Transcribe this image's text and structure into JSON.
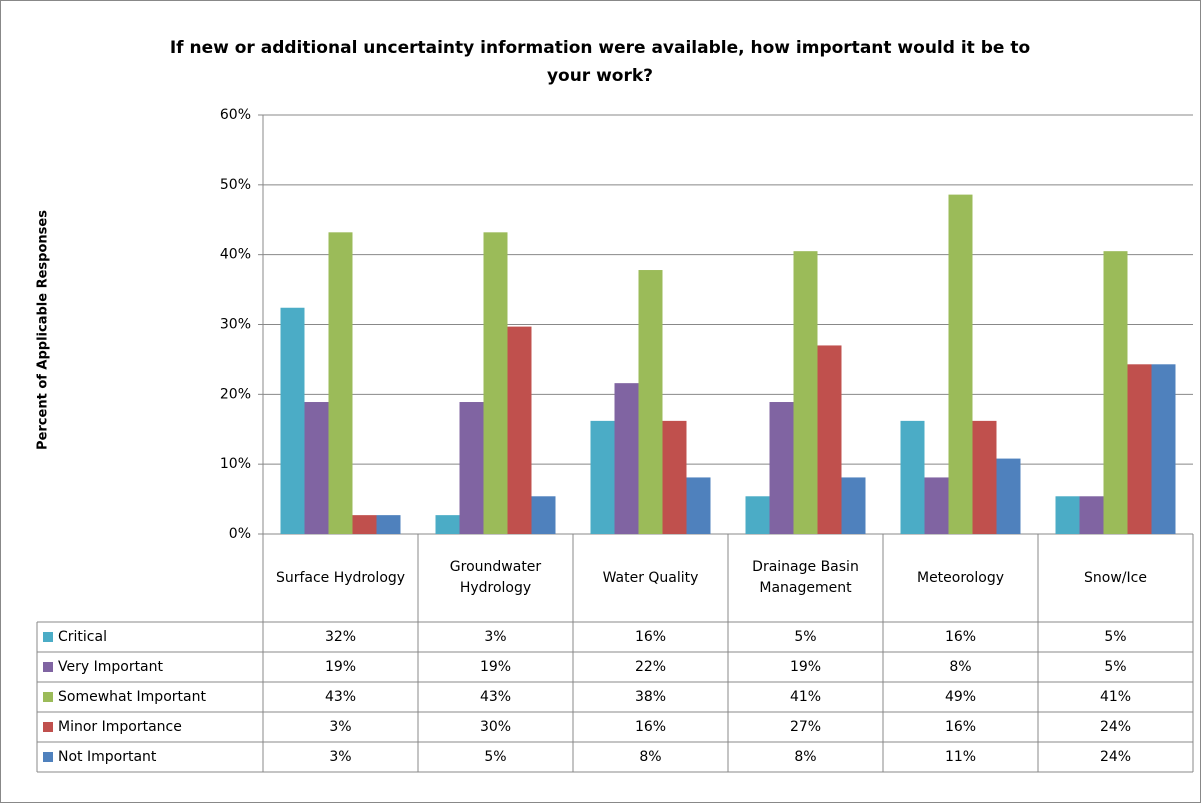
{
  "chart_data": {
    "type": "bar",
    "title": "If new or additional uncertainty information were available, how important would it be to your work?",
    "y_label": "Percent of Applicable  Responses",
    "categories": [
      "Surface Hydrology",
      "Groundwater Hydrology",
      "Water Quality",
      "Drainage Basin Management",
      "Meteorology",
      "Snow/Ice"
    ],
    "series": [
      {
        "name": "Critical",
        "color": "#4BACC6",
        "values": [
          32.4,
          2.7,
          16.2,
          5.4,
          16.2,
          5.4
        ],
        "value_labels": [
          "32%",
          "3%",
          "16%",
          "5%",
          "16%",
          "5%"
        ]
      },
      {
        "name": "Very Important",
        "color": "#8064A2",
        "values": [
          18.9,
          18.9,
          21.6,
          18.9,
          8.1,
          5.4
        ],
        "value_labels": [
          "19%",
          "19%",
          "22%",
          "19%",
          "8%",
          "5%"
        ]
      },
      {
        "name": "Somewhat Important",
        "color": "#9BBB59",
        "values": [
          43.2,
          43.2,
          37.8,
          40.5,
          48.6,
          40.5
        ],
        "value_labels": [
          "43%",
          "43%",
          "38%",
          "41%",
          "49%",
          "41%"
        ]
      },
      {
        "name": "Minor Importance",
        "color": "#C0504D",
        "values": [
          2.7,
          29.7,
          16.2,
          27.0,
          16.2,
          24.3
        ],
        "value_labels": [
          "3%",
          "30%",
          "16%",
          "27%",
          "16%",
          "24%"
        ]
      },
      {
        "name": "Not Important",
        "color": "#4F81BD",
        "values": [
          2.7,
          5.4,
          8.1,
          8.1,
          10.8,
          24.3
        ],
        "value_labels": [
          "3%",
          "5%",
          "8%",
          "8%",
          "11%",
          "24%"
        ]
      }
    ],
    "ylim": [
      0,
      60
    ],
    "yticks": [
      {
        "value": 0,
        "label": "0%"
      },
      {
        "value": 10,
        "label": "10%"
      },
      {
        "value": 20,
        "label": "20%"
      },
      {
        "value": 30,
        "label": "30%"
      },
      {
        "value": 40,
        "label": "40%"
      },
      {
        "value": 50,
        "label": "50%"
      },
      {
        "value": 60,
        "label": "60%"
      }
    ],
    "grid": true
  }
}
